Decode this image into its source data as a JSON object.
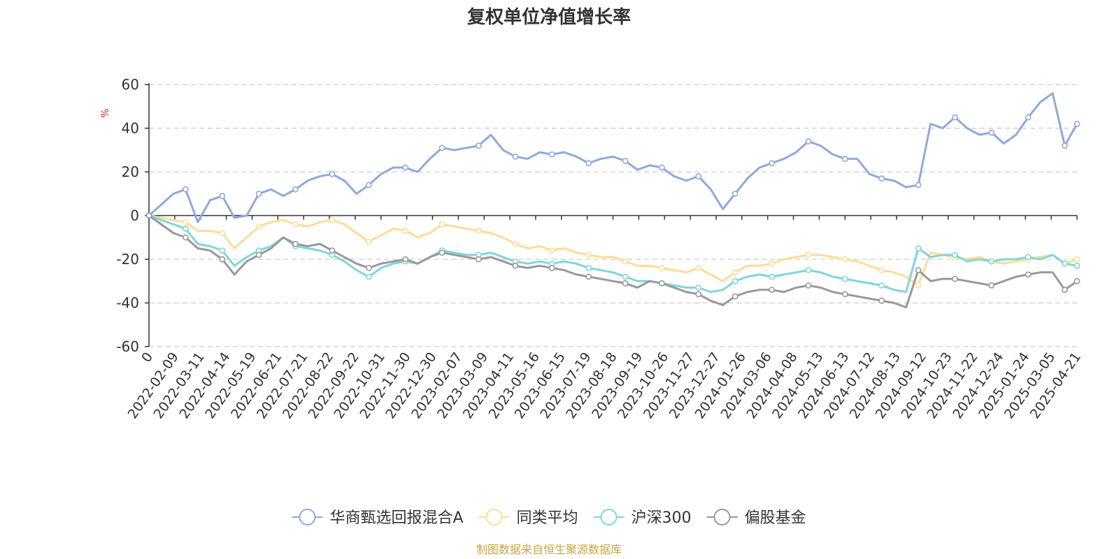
{
  "chart_data": {
    "type": "line",
    "title": "复权单位净值增长率",
    "ylabel": "%",
    "ylim": [
      -60,
      60
    ],
    "yticks": [
      60,
      40,
      20,
      0,
      -20,
      -40,
      -60
    ],
    "x_tick_labels": [
      "0",
      "2022-02-09",
      "2022-03-11",
      "2022-04-14",
      "2022-05-19",
      "2022-06-21",
      "2022-07-21",
      "2022-08-22",
      "2022-09-22",
      "2022-10-31",
      "2022-11-30",
      "2022-12-30",
      "2023-02-07",
      "2023-03-09",
      "2023-04-11",
      "2023-05-16",
      "2023-06-15",
      "2023-07-19",
      "2023-08-18",
      "2023-09-19",
      "2023-10-26",
      "2023-11-27",
      "2023-12-27",
      "2024-01-26",
      "2024-03-06",
      "2024-04-08",
      "2024-05-13",
      "2024-06-13",
      "2024-07-12",
      "2024-08-13",
      "2024-09-12",
      "2024-10-23",
      "2024-11-22",
      "2024-12-24",
      "2025-01-24",
      "2025-03-05",
      "2025-04-21"
    ],
    "x": [
      "start",
      "2022-01-24",
      "2022-02-09",
      "2022-02-25",
      "2022-03-11",
      "2022-03-28",
      "2022-04-14",
      "2022-04-27",
      "2022-05-19",
      "2022-06-06",
      "2022-06-21",
      "2022-07-06",
      "2022-07-21",
      "2022-08-05",
      "2022-08-22",
      "2022-09-06",
      "2022-09-22",
      "2022-10-17",
      "2022-10-31",
      "2022-11-15",
      "2022-11-30",
      "2022-12-15",
      "2022-12-30",
      "2023-01-17",
      "2023-02-07",
      "2023-02-22",
      "2023-03-09",
      "2023-03-24",
      "2023-04-11",
      "2023-04-26",
      "2023-05-16",
      "2023-05-31",
      "2023-06-15",
      "2023-07-04",
      "2023-07-19",
      "2023-08-03",
      "2023-08-18",
      "2023-09-04",
      "2023-09-19",
      "2023-10-11",
      "2023-10-26",
      "2023-11-10",
      "2023-11-27",
      "2023-12-12",
      "2023-12-27",
      "2024-01-11",
      "2024-01-26",
      "2024-02-05",
      "2024-02-22",
      "2024-03-06",
      "2024-03-21",
      "2024-04-08",
      "2024-04-23",
      "2024-05-13",
      "2024-05-28",
      "2024-06-13",
      "2024-06-27",
      "2024-07-12",
      "2024-07-29",
      "2024-08-13",
      "2024-08-28",
      "2024-09-12",
      "2024-09-24",
      "2024-10-08",
      "2024-10-23",
      "2024-11-07",
      "2024-11-22",
      "2024-12-09",
      "2024-12-24",
      "2025-01-09",
      "2025-01-24",
      "2025-02-18",
      "2025-03-05",
      "2025-03-20",
      "2025-04-03",
      "2025-04-09",
      "2025-04-21"
    ],
    "series": [
      {
        "name": "华商甄选回报混合A",
        "color": "#8eaadb",
        "values": [
          0,
          5,
          10,
          12,
          -3,
          7,
          9,
          -1,
          0,
          10,
          12,
          9,
          12,
          16,
          18,
          19,
          16,
          10,
          14,
          19,
          22,
          22,
          20,
          26,
          31,
          30,
          31,
          32,
          37,
          30,
          27,
          26,
          29,
          28,
          29,
          27,
          24,
          26,
          27,
          25,
          21,
          23,
          22,
          18,
          16,
          18,
          12,
          3,
          10,
          17,
          22,
          24,
          26,
          29,
          34,
          32,
          28,
          26,
          26,
          19,
          17,
          16,
          13,
          14,
          42,
          40,
          45,
          40,
          37,
          38,
          33,
          37,
          45,
          52,
          56,
          32,
          42
        ]
      },
      {
        "name": "同类平均",
        "color": "#ffdb99",
        "values": [
          0,
          -1,
          -2,
          -3,
          -7,
          -7,
          -8,
          -15,
          -10,
          -5,
          -3,
          -2,
          -4,
          -5,
          -3,
          -2,
          -4,
          -8,
          -12,
          -9,
          -6,
          -7,
          -10,
          -8,
          -4,
          -5,
          -6,
          -7,
          -8,
          -10,
          -13,
          -15,
          -14,
          -16,
          -15,
          -17,
          -18,
          -19,
          -19,
          -21,
          -23,
          -23,
          -24,
          -25,
          -26,
          -24,
          -27,
          -30,
          -26,
          -23,
          -23,
          -22,
          -20,
          -19,
          -18,
          -18,
          -19,
          -20,
          -21,
          -23,
          -25,
          -26,
          -28,
          -32,
          -17,
          -18,
          -19,
          -20,
          -19,
          -21,
          -22,
          -21,
          -20,
          -19,
          -18,
          -22,
          -20
        ]
      },
      {
        "name": "沪深300",
        "color": "#7fd6dc",
        "values": [
          0,
          -2,
          -4,
          -6,
          -13,
          -14,
          -16,
          -23,
          -19,
          -16,
          -14,
          -10,
          -14,
          -15,
          -16,
          -18,
          -21,
          -25,
          -28,
          -24,
          -22,
          -21,
          -22,
          -19,
          -16,
          -17,
          -18,
          -18,
          -17,
          -19,
          -21,
          -22,
          -21,
          -22,
          -21,
          -22,
          -24,
          -25,
          -26,
          -28,
          -30,
          -30,
          -31,
          -32,
          -33,
          -33,
          -35,
          -34,
          -30,
          -28,
          -27,
          -28,
          -27,
          -26,
          -25,
          -26,
          -28,
          -29,
          -30,
          -31,
          -32,
          -34,
          -35,
          -15,
          -19,
          -18,
          -18,
          -21,
          -20,
          -21,
          -20,
          -20,
          -19,
          -20,
          -18,
          -22,
          -23
        ]
      },
      {
        "name": "偏股基金",
        "color": "#999999",
        "values": [
          0,
          -4,
          -8,
          -10,
          -15,
          -16,
          -20,
          -27,
          -21,
          -18,
          -15,
          -10,
          -13,
          -14,
          -13,
          -16,
          -19,
          -22,
          -24,
          -22,
          -21,
          -20,
          -22,
          -19,
          -17,
          -18,
          -19,
          -20,
          -19,
          -21,
          -23,
          -24,
          -23,
          -24,
          -25,
          -27,
          -28,
          -29,
          -30,
          -31,
          -33,
          -30,
          -31,
          -33,
          -35,
          -36,
          -39,
          -41,
          -37,
          -35,
          -34,
          -34,
          -35,
          -33,
          -32,
          -33,
          -35,
          -36,
          -37,
          -38,
          -39,
          -40,
          -42,
          -25,
          -30,
          -29,
          -29,
          -30,
          -31,
          -32,
          -30,
          -28,
          -27,
          -26,
          -26,
          -34,
          -30
        ]
      }
    ],
    "legend_position": "bottom-center",
    "grid": true,
    "source_note": "制图数据来自恒生聚源数据库",
    "source_note_color": "#c8a441"
  }
}
